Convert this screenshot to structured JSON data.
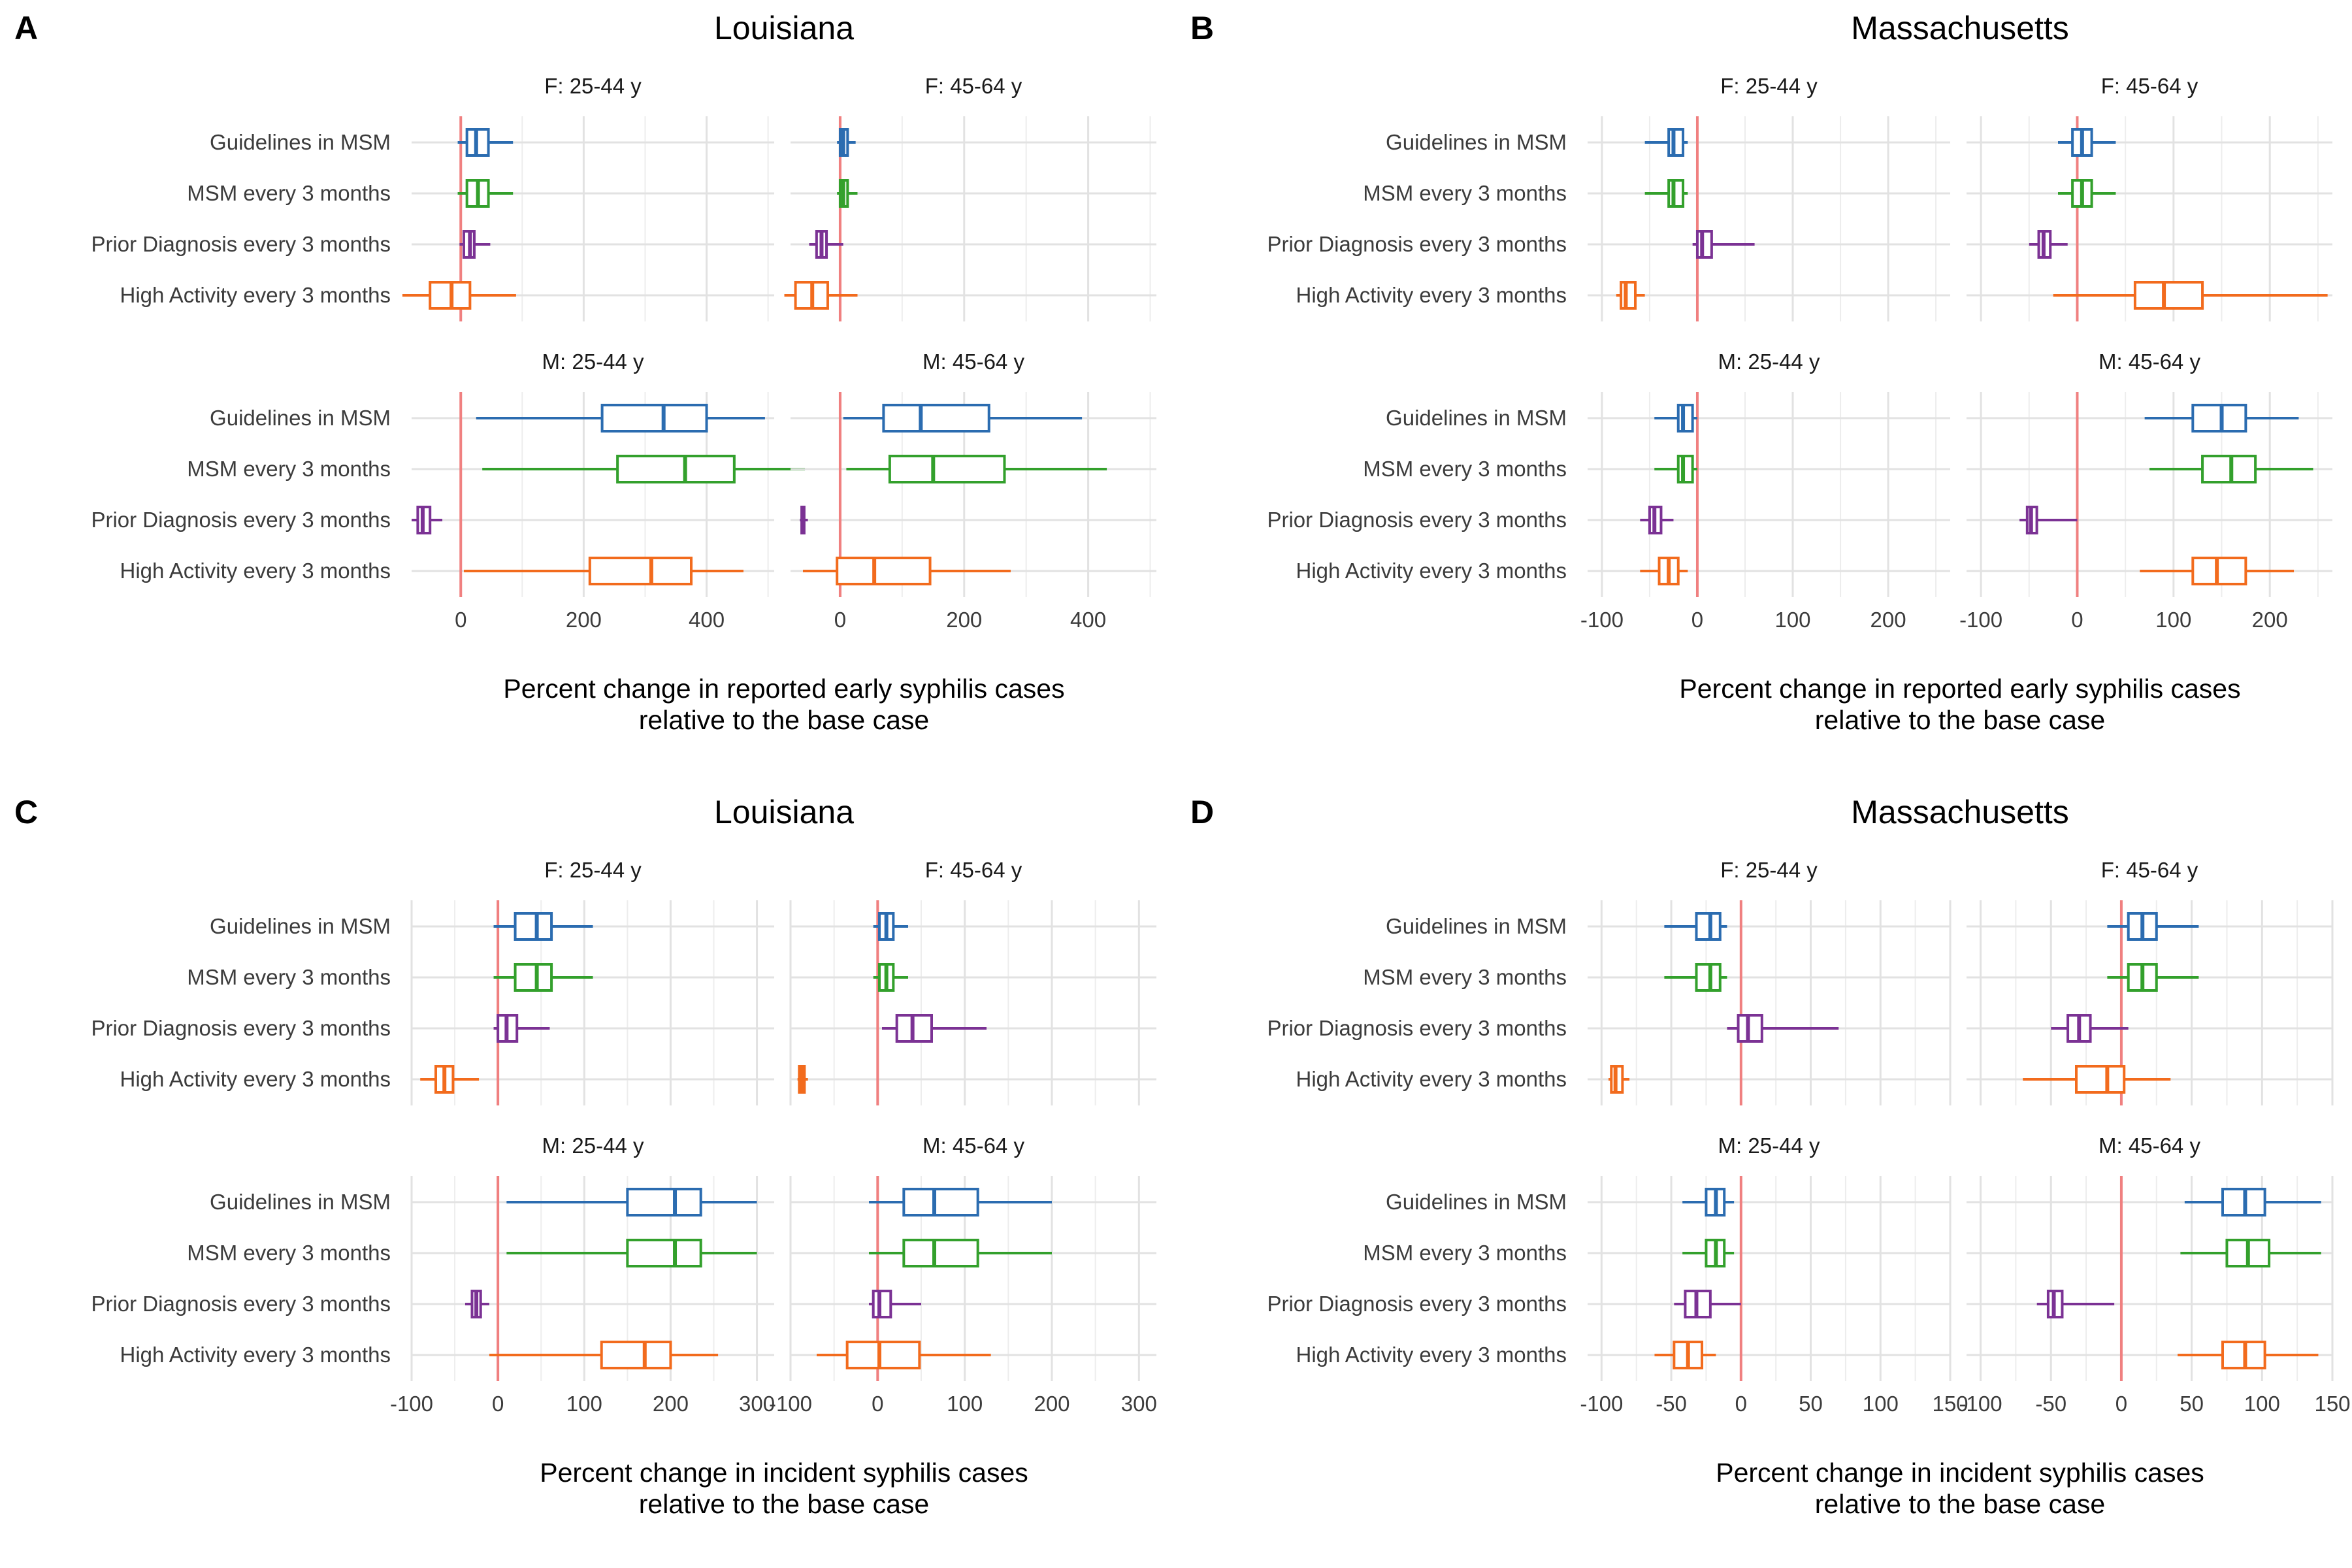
{
  "figure": {
    "category_labels": [
      "Guidelines in MSM",
      "MSM every 3 months",
      "Prior Diagnosis every 3 months",
      "High Activity every 3 months"
    ],
    "series_colors": {
      "Guidelines in MSM": "#2b6cb0",
      "MSM every 3 months": "#33a02c",
      "Prior Diagnosis every 3 months": "#7b3294",
      "High Activity every 3 months": "#f26b1d"
    },
    "reference_line_color": "#f08080",
    "grid": true
  },
  "chart_data": [
    {
      "panel_label": "A",
      "title": "Louisiana",
      "xlabel": [
        "Percent change in reported early syphilis cases",
        "relative to the base case"
      ],
      "type": "boxplot",
      "x_axis": "horizontal",
      "xlim": [
        -80,
        510
      ],
      "xticks": [
        0,
        200,
        400
      ],
      "xtick_labels": [
        "0",
        "200",
        "400"
      ],
      "minor_xticks": [
        -100,
        100,
        300,
        500
      ],
      "facets": [
        {
          "title": "F: 25-44 y",
          "boxes": [
            {
              "category": "Guidelines in MSM",
              "whisker_low": -5,
              "q1": 10,
              "median": 25,
              "q3": 45,
              "whisker_high": 85
            },
            {
              "category": "MSM every 3 months",
              "whisker_low": -5,
              "q1": 10,
              "median": 28,
              "q3": 45,
              "whisker_high": 85
            },
            {
              "category": "Prior Diagnosis every 3 months",
              "whisker_low": -2,
              "q1": 5,
              "median": 15,
              "q3": 22,
              "whisker_high": 48
            },
            {
              "category": "High Activity every 3 months",
              "whisker_low": -95,
              "q1": -50,
              "median": -15,
              "q3": 15,
              "whisker_high": 90
            }
          ]
        },
        {
          "title": "F: 45-64 y",
          "boxes": [
            {
              "category": "Guidelines in MSM",
              "whisker_low": -5,
              "q1": 0,
              "median": 5,
              "q3": 12,
              "whisker_high": 25
            },
            {
              "category": "MSM every 3 months",
              "whisker_low": -5,
              "q1": 0,
              "median": 5,
              "q3": 12,
              "whisker_high": 28
            },
            {
              "category": "Prior Diagnosis every 3 months",
              "whisker_low": -50,
              "q1": -38,
              "median": -30,
              "q3": -22,
              "whisker_high": 5
            },
            {
              "category": "High Activity every 3 months",
              "whisker_low": -90,
              "q1": -72,
              "median": -45,
              "q3": -20,
              "whisker_high": 28
            }
          ]
        },
        {
          "title": "M: 25-44 y",
          "boxes": [
            {
              "category": "Guidelines in MSM",
              "whisker_low": 25,
              "q1": 230,
              "median": 330,
              "q3": 400,
              "whisker_high": 495
            },
            {
              "category": "MSM every 3 months",
              "whisker_low": 35,
              "q1": 255,
              "median": 365,
              "q3": 445,
              "whisker_high": 560
            },
            {
              "category": "Prior Diagnosis every 3 months",
              "whisker_low": -80,
              "q1": -70,
              "median": -62,
              "q3": -50,
              "whisker_high": -30
            },
            {
              "category": "High Activity every 3 months",
              "whisker_low": 5,
              "q1": 210,
              "median": 310,
              "q3": 375,
              "whisker_high": 460
            }
          ]
        },
        {
          "title": "M: 45-64 y",
          "boxes": [
            {
              "category": "Guidelines in MSM",
              "whisker_low": 5,
              "q1": 70,
              "median": 130,
              "q3": 240,
              "whisker_high": 390
            },
            {
              "category": "MSM every 3 months",
              "whisker_low": 10,
              "q1": 80,
              "median": 150,
              "q3": 265,
              "whisker_high": 430
            },
            {
              "category": "Prior Diagnosis every 3 months",
              "whisker_low": -65,
              "q1": -62,
              "median": -60,
              "q3": -58,
              "whisker_high": -52
            },
            {
              "category": "High Activity every 3 months",
              "whisker_low": -60,
              "q1": -5,
              "median": 55,
              "q3": 145,
              "whisker_high": 275
            }
          ]
        }
      ]
    },
    {
      "panel_label": "B",
      "title": "Massachusetts",
      "xlabel": [
        "Percent change in reported early syphilis cases",
        "relative to the base case"
      ],
      "type": "boxplot",
      "x_axis": "horizontal",
      "xlim": [
        -115,
        265
      ],
      "xticks": [
        -100,
        0,
        100,
        200
      ],
      "xtick_labels": [
        "-100",
        "0",
        "100",
        "200"
      ],
      "minor_xticks": [
        -50,
        50,
        150,
        250
      ],
      "facets": [
        {
          "title": "F: 25-44 y",
          "boxes": [
            {
              "category": "Guidelines in MSM",
              "whisker_low": -55,
              "q1": -30,
              "median": -25,
              "q3": -15,
              "whisker_high": -10
            },
            {
              "category": "MSM every 3 months",
              "whisker_low": -55,
              "q1": -30,
              "median": -25,
              "q3": -15,
              "whisker_high": -10
            },
            {
              "category": "Prior Diagnosis every 3 months",
              "whisker_low": -5,
              "q1": 0,
              "median": 5,
              "q3": 15,
              "whisker_high": 60
            },
            {
              "category": "High Activity every 3 months",
              "whisker_low": -85,
              "q1": -80,
              "median": -75,
              "q3": -65,
              "whisker_high": -55
            }
          ]
        },
        {
          "title": "F: 45-64 y",
          "boxes": [
            {
              "category": "Guidelines in MSM",
              "whisker_low": -20,
              "q1": -5,
              "median": 5,
              "q3": 15,
              "whisker_high": 40
            },
            {
              "category": "MSM every 3 months",
              "whisker_low": -20,
              "q1": -5,
              "median": 5,
              "q3": 15,
              "whisker_high": 40
            },
            {
              "category": "Prior Diagnosis every 3 months",
              "whisker_low": -50,
              "q1": -40,
              "median": -35,
              "q3": -28,
              "whisker_high": -10
            },
            {
              "category": "High Activity every 3 months",
              "whisker_low": -25,
              "q1": 60,
              "median": 90,
              "q3": 130,
              "whisker_high": 260
            }
          ]
        },
        {
          "title": "M: 25-44 y",
          "boxes": [
            {
              "category": "Guidelines in MSM",
              "whisker_low": -45,
              "q1": -20,
              "median": -15,
              "q3": -5,
              "whisker_high": 0
            },
            {
              "category": "MSM every 3 months",
              "whisker_low": -45,
              "q1": -20,
              "median": -15,
              "q3": -5,
              "whisker_high": 0
            },
            {
              "category": "Prior Diagnosis every 3 months",
              "whisker_low": -60,
              "q1": -50,
              "median": -45,
              "q3": -38,
              "whisker_high": -25
            },
            {
              "category": "High Activity every 3 months",
              "whisker_low": -60,
              "q1": -40,
              "median": -30,
              "q3": -20,
              "whisker_high": -10
            }
          ]
        },
        {
          "title": "M: 45-64 y",
          "boxes": [
            {
              "category": "Guidelines in MSM",
              "whisker_low": 70,
              "q1": 120,
              "median": 150,
              "q3": 175,
              "whisker_high": 230
            },
            {
              "category": "MSM every 3 months",
              "whisker_low": 75,
              "q1": 130,
              "median": 160,
              "q3": 185,
              "whisker_high": 245
            },
            {
              "category": "Prior Diagnosis every 3 months",
              "whisker_low": -60,
              "q1": -52,
              "median": -48,
              "q3": -42,
              "whisker_high": 0
            },
            {
              "category": "High Activity every 3 months",
              "whisker_low": 65,
              "q1": 120,
              "median": 145,
              "q3": 175,
              "whisker_high": 225
            }
          ]
        }
      ]
    },
    {
      "panel_label": "C",
      "title": "Louisiana",
      "xlabel": [
        "Percent change in incident syphilis cases",
        "relative to the base case"
      ],
      "type": "boxplot",
      "x_axis": "horizontal",
      "xlim": [
        -100,
        320
      ],
      "xticks": [
        -100,
        0,
        100,
        200,
        300
      ],
      "xtick_labels": [
        "-100",
        "0",
        "100",
        "200",
        "300"
      ],
      "minor_xticks": [
        -50,
        50,
        150,
        250
      ],
      "facets": [
        {
          "title": "F: 25-44 y",
          "boxes": [
            {
              "category": "Guidelines in MSM",
              "whisker_low": -5,
              "q1": 20,
              "median": 45,
              "q3": 62,
              "whisker_high": 110
            },
            {
              "category": "MSM every 3 months",
              "whisker_low": -5,
              "q1": 20,
              "median": 45,
              "q3": 62,
              "whisker_high": 110
            },
            {
              "category": "Prior Diagnosis every 3 months",
              "whisker_low": -5,
              "q1": 0,
              "median": 10,
              "q3": 22,
              "whisker_high": 60
            },
            {
              "category": "High Activity every 3 months",
              "whisker_low": -90,
              "q1": -72,
              "median": -62,
              "q3": -52,
              "whisker_high": -22
            }
          ]
        },
        {
          "title": "F: 45-64 y",
          "boxes": [
            {
              "category": "Guidelines in MSM",
              "whisker_low": -5,
              "q1": 2,
              "median": 10,
              "q3": 18,
              "whisker_high": 35
            },
            {
              "category": "MSM every 3 months",
              "whisker_low": -5,
              "q1": 2,
              "median": 10,
              "q3": 18,
              "whisker_high": 35
            },
            {
              "category": "Prior Diagnosis every 3 months",
              "whisker_low": 5,
              "q1": 22,
              "median": 40,
              "q3": 62,
              "whisker_high": 125
            },
            {
              "category": "High Activity every 3 months",
              "whisker_low": -92,
              "q1": -90,
              "median": -87,
              "q3": -84,
              "whisker_high": -80
            }
          ]
        },
        {
          "title": "M: 25-44 y",
          "boxes": [
            {
              "category": "Guidelines in MSM",
              "whisker_low": 10,
              "q1": 150,
              "median": 205,
              "q3": 235,
              "whisker_high": 300
            },
            {
              "category": "MSM every 3 months",
              "whisker_low": 10,
              "q1": 150,
              "median": 205,
              "q3": 235,
              "whisker_high": 300
            },
            {
              "category": "Prior Diagnosis every 3 months",
              "whisker_low": -38,
              "q1": -30,
              "median": -25,
              "q3": -20,
              "whisker_high": -10
            },
            {
              "category": "High Activity every 3 months",
              "whisker_low": -10,
              "q1": 120,
              "median": 170,
              "q3": 200,
              "whisker_high": 255
            }
          ]
        },
        {
          "title": "M: 45-64 y",
          "boxes": [
            {
              "category": "Guidelines in MSM",
              "whisker_low": -10,
              "q1": 30,
              "median": 65,
              "q3": 115,
              "whisker_high": 200
            },
            {
              "category": "MSM every 3 months",
              "whisker_low": -10,
              "q1": 30,
              "median": 65,
              "q3": 115,
              "whisker_high": 200
            },
            {
              "category": "Prior Diagnosis every 3 months",
              "whisker_low": -10,
              "q1": -5,
              "median": 2,
              "q3": 15,
              "whisker_high": 50
            },
            {
              "category": "High Activity every 3 months",
              "whisker_low": -70,
              "q1": -35,
              "median": 2,
              "q3": 48,
              "whisker_high": 130
            }
          ]
        }
      ]
    },
    {
      "panel_label": "D",
      "title": "Massachusetts",
      "xlabel": [
        "Percent change in incident syphilis cases",
        "relative to the base case"
      ],
      "type": "boxplot",
      "x_axis": "horizontal",
      "xlim": [
        -110,
        150
      ],
      "xticks": [
        -100,
        -50,
        0,
        50,
        100,
        150
      ],
      "xtick_labels": [
        "-100",
        "-50",
        "0",
        "50",
        "100",
        "150"
      ],
      "minor_xticks": [
        -75,
        -25,
        25,
        75,
        125
      ],
      "facets": [
        {
          "title": "F: 25-44 y",
          "boxes": [
            {
              "category": "Guidelines in MSM",
              "whisker_low": -55,
              "q1": -32,
              "median": -22,
              "q3": -15,
              "whisker_high": -10
            },
            {
              "category": "MSM every 3 months",
              "whisker_low": -55,
              "q1": -32,
              "median": -22,
              "q3": -15,
              "whisker_high": -10
            },
            {
              "category": "Prior Diagnosis every 3 months",
              "whisker_low": -10,
              "q1": -2,
              "median": 5,
              "q3": 15,
              "whisker_high": 70
            },
            {
              "category": "High Activity every 3 months",
              "whisker_low": -95,
              "q1": -93,
              "median": -90,
              "q3": -85,
              "whisker_high": -80
            }
          ]
        },
        {
          "title": "F: 45-64 y",
          "boxes": [
            {
              "category": "Guidelines in MSM",
              "whisker_low": -10,
              "q1": 5,
              "median": 15,
              "q3": 25,
              "whisker_high": 55
            },
            {
              "category": "MSM every 3 months",
              "whisker_low": -10,
              "q1": 5,
              "median": 15,
              "q3": 25,
              "whisker_high": 55
            },
            {
              "category": "Prior Diagnosis every 3 months",
              "whisker_low": -50,
              "q1": -38,
              "median": -30,
              "q3": -22,
              "whisker_high": 5
            },
            {
              "category": "High Activity every 3 months",
              "whisker_low": -70,
              "q1": -32,
              "median": -10,
              "q3": 2,
              "whisker_high": 35
            }
          ]
        },
        {
          "title": "M: 25-44 y",
          "boxes": [
            {
              "category": "Guidelines in MSM",
              "whisker_low": -42,
              "q1": -25,
              "median": -18,
              "q3": -12,
              "whisker_high": -5
            },
            {
              "category": "MSM every 3 months",
              "whisker_low": -42,
              "q1": -25,
              "median": -18,
              "q3": -12,
              "whisker_high": -5
            },
            {
              "category": "Prior Diagnosis every 3 months",
              "whisker_low": -48,
              "q1": -40,
              "median": -32,
              "q3": -22,
              "whisker_high": 0
            },
            {
              "category": "High Activity every 3 months",
              "whisker_low": -62,
              "q1": -48,
              "median": -38,
              "q3": -28,
              "whisker_high": -18
            }
          ]
        },
        {
          "title": "M: 45-64 y",
          "boxes": [
            {
              "category": "Guidelines in MSM",
              "whisker_low": 45,
              "q1": 72,
              "median": 88,
              "q3": 102,
              "whisker_high": 142
            },
            {
              "category": "MSM every 3 months",
              "whisker_low": 42,
              "q1": 75,
              "median": 90,
              "q3": 105,
              "whisker_high": 142
            },
            {
              "category": "Prior Diagnosis every 3 months",
              "whisker_low": -60,
              "q1": -52,
              "median": -48,
              "q3": -42,
              "whisker_high": -5
            },
            {
              "category": "High Activity every 3 months",
              "whisker_low": 40,
              "q1": 72,
              "median": 88,
              "q3": 102,
              "whisker_high": 140
            }
          ]
        }
      ]
    }
  ]
}
